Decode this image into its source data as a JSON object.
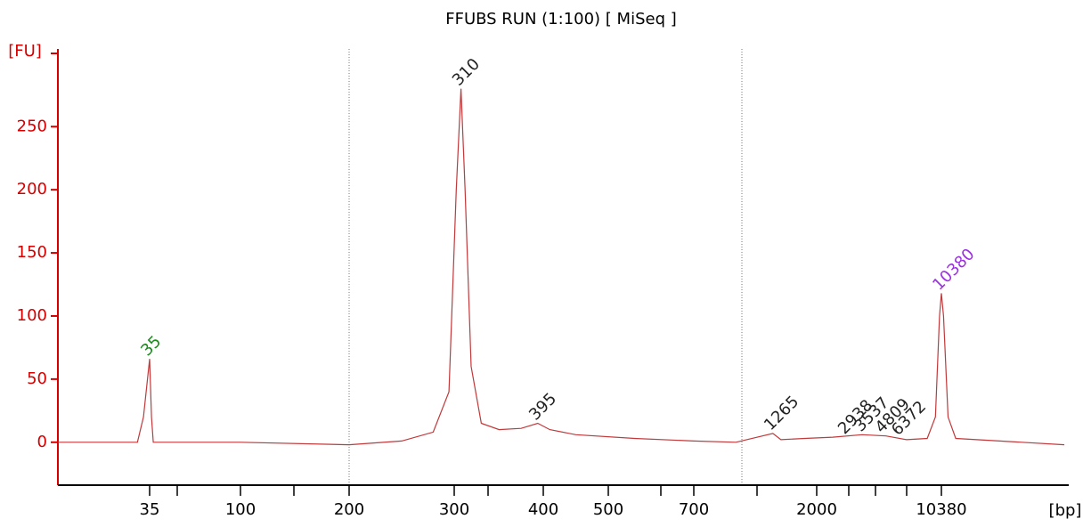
{
  "chart_data": {
    "type": "line",
    "title": "FFUBS RUN (1:100)  [ MiSeq ]",
    "y_label": "[FU]",
    "x_label": "[bp]",
    "x": [
      20,
      33,
      34,
      35,
      36,
      37,
      100,
      200,
      250,
      280,
      295,
      303,
      310,
      316,
      325,
      340,
      360,
      380,
      395,
      410,
      450,
      550,
      700,
      900,
      1265,
      1400,
      1800,
      2500,
      3500,
      5000,
      7000,
      9000,
      9800,
      10200,
      10380,
      10550,
      10900,
      11500,
      20000
    ],
    "series": [
      {
        "name": "Sample",
        "color": "#c0393b",
        "values": [
          0,
          0,
          20,
          66,
          20,
          0,
          0,
          -2,
          1,
          8,
          40,
          200,
          280,
          200,
          60,
          15,
          10,
          11,
          15,
          10,
          6,
          3,
          1,
          0,
          7,
          2,
          3,
          4,
          6,
          5,
          2,
          3,
          20,
          100,
          118,
          100,
          20,
          3,
          -2
        ]
      }
    ],
    "annotations": [
      {
        "x": 35,
        "y": 66,
        "color": "#1a8a1a"
      },
      {
        "x": 310,
        "y": 280,
        "color": "#222222"
      },
      {
        "x": 395,
        "y": 15,
        "color": "#222222"
      },
      {
        "x": 1265,
        "y": 7,
        "color": "#222222"
      },
      {
        "x": 2938,
        "y": 4,
        "color": "#222222"
      },
      {
        "x": 3537,
        "y": 6,
        "color": "#222222"
      },
      {
        "x": 4809,
        "y": 5,
        "color": "#222222"
      },
      {
        "x": 6372,
        "y": 3,
        "color": "#222222"
      },
      {
        "x": 10380,
        "y": 118,
        "color": "#9b30e0"
      }
    ],
    "xlim": [
      20,
      20000
    ],
    "xticks": [
      35,
      {
        "value": 50,
        "label": null
      },
      100,
      {
        "value": 150,
        "label": null
      },
      200,
      300,
      {
        "value": 350,
        "label": null
      },
      400,
      500,
      {
        "value": 600,
        "label": null
      },
      700,
      {
        "value": 1000,
        "label": null
      },
      2000,
      {
        "value": 3000,
        "label": null
      },
      {
        "value": 4000,
        "label": null
      },
      {
        "value": 7000,
        "label": null
      },
      10380
    ],
    "ylim": [
      -34,
      308
    ],
    "yticks": [
      0,
      50,
      100,
      150,
      200,
      250
    ],
    "axis_color": "#d40000"
  }
}
